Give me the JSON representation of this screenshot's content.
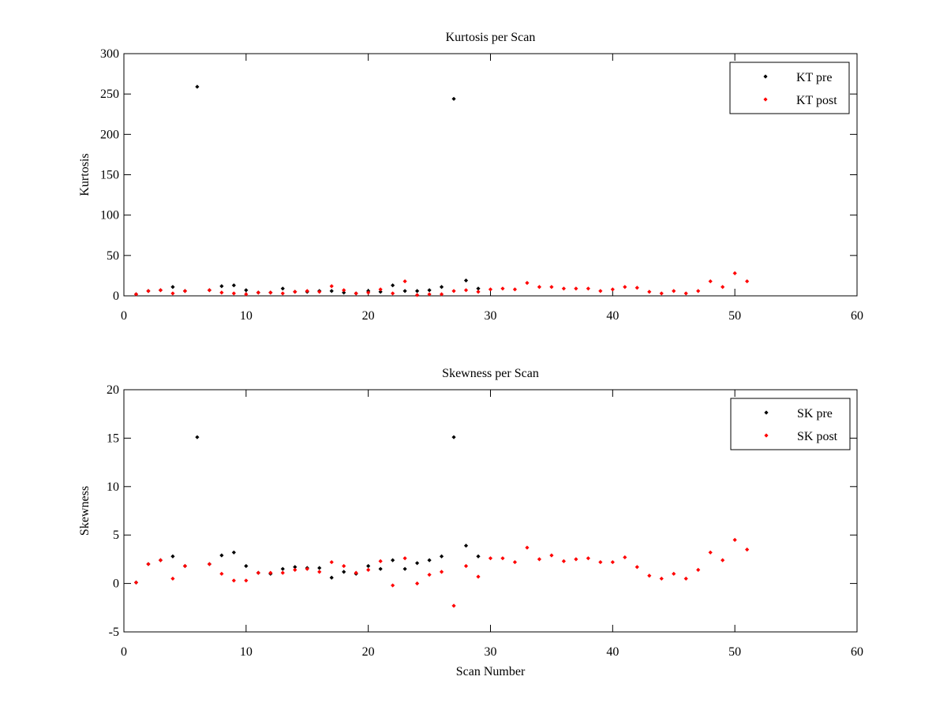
{
  "chart_data": [
    {
      "type": "scatter",
      "title": "Kurtosis per Scan",
      "xlabel": "",
      "ylabel": "Kurtosis",
      "xlim": [
        0,
        60
      ],
      "ylim": [
        0,
        300
      ],
      "xticks": [
        0,
        10,
        20,
        30,
        40,
        50,
        60
      ],
      "yticks": [
        0,
        50,
        100,
        150,
        200,
        250,
        300
      ],
      "legend_position": "top-right",
      "grid": false,
      "series": [
        {
          "name": "KT pre",
          "color": "#000000",
          "points": [
            [
              1,
              2
            ],
            [
              2,
              6
            ],
            [
              3,
              7
            ],
            [
              4,
              11
            ],
            [
              5,
              6
            ],
            [
              6,
              259
            ],
            [
              7,
              7
            ],
            [
              8,
              12
            ],
            [
              9,
              13
            ],
            [
              10,
              7
            ],
            [
              11,
              4
            ],
            [
              12,
              4
            ],
            [
              13,
              9
            ],
            [
              14,
              5
            ],
            [
              15,
              5
            ],
            [
              16,
              6
            ],
            [
              17,
              6
            ],
            [
              18,
              4
            ],
            [
              19,
              3
            ],
            [
              20,
              6
            ],
            [
              21,
              5
            ],
            [
              22,
              13
            ],
            [
              23,
              6
            ],
            [
              24,
              6
            ],
            [
              25,
              7
            ],
            [
              26,
              11
            ],
            [
              27,
              244
            ],
            [
              28,
              19
            ],
            [
              29,
              9
            ]
          ]
        },
        {
          "name": "KT post",
          "color": "#ff0000",
          "points": [
            [
              1,
              2
            ],
            [
              2,
              6
            ],
            [
              3,
              7
            ],
            [
              4,
              3
            ],
            [
              5,
              6
            ],
            [
              7,
              7
            ],
            [
              8,
              4
            ],
            [
              9,
              3
            ],
            [
              10,
              2
            ],
            [
              11,
              4
            ],
            [
              12,
              4
            ],
            [
              13,
              3
            ],
            [
              14,
              5
            ],
            [
              15,
              6
            ],
            [
              16,
              5
            ],
            [
              17,
              12
            ],
            [
              18,
              7
            ],
            [
              19,
              3
            ],
            [
              20,
              4
            ],
            [
              21,
              8
            ],
            [
              22,
              3
            ],
            [
              23,
              18
            ],
            [
              24,
              1
            ],
            [
              25,
              2
            ],
            [
              26,
              2
            ],
            [
              27,
              6
            ],
            [
              28,
              7
            ],
            [
              29,
              5
            ],
            [
              30,
              8
            ],
            [
              31,
              9
            ],
            [
              32,
              8
            ],
            [
              33,
              16
            ],
            [
              34,
              11
            ],
            [
              35,
              11
            ],
            [
              36,
              9
            ],
            [
              37,
              9
            ],
            [
              38,
              9
            ],
            [
              39,
              6
            ],
            [
              40,
              8
            ],
            [
              41,
              11
            ],
            [
              42,
              10
            ],
            [
              43,
              5
            ],
            [
              44,
              3
            ],
            [
              45,
              6
            ],
            [
              46,
              3
            ],
            [
              47,
              6
            ],
            [
              48,
              18
            ],
            [
              49,
              11
            ],
            [
              50,
              28
            ],
            [
              51,
              18
            ]
          ]
        }
      ]
    },
    {
      "type": "scatter",
      "title": "Skewness per Scan",
      "xlabel": "Scan Number",
      "ylabel": "Skewness",
      "xlim": [
        0,
        60
      ],
      "ylim": [
        -5,
        20
      ],
      "xticks": [
        0,
        10,
        20,
        30,
        40,
        50,
        60
      ],
      "yticks": [
        -5,
        0,
        5,
        10,
        15,
        20
      ],
      "legend_position": "top-right",
      "grid": false,
      "series": [
        {
          "name": "SK pre",
          "color": "#000000",
          "points": [
            [
              1,
              0.1
            ],
            [
              2,
              2.0
            ],
            [
              3,
              2.4
            ],
            [
              4,
              2.8
            ],
            [
              5,
              1.8
            ],
            [
              6,
              15.1
            ],
            [
              7,
              2.0
            ],
            [
              8,
              2.9
            ],
            [
              9,
              3.2
            ],
            [
              10,
              1.8
            ],
            [
              11,
              1.1
            ],
            [
              12,
              1.0
            ],
            [
              13,
              1.5
            ],
            [
              14,
              1.7
            ],
            [
              15,
              1.6
            ],
            [
              16,
              1.6
            ],
            [
              17,
              0.6
            ],
            [
              18,
              1.2
            ],
            [
              19,
              1.0
            ],
            [
              20,
              1.8
            ],
            [
              21,
              1.5
            ],
            [
              22,
              2.4
            ],
            [
              23,
              1.5
            ],
            [
              24,
              2.1
            ],
            [
              25,
              2.4
            ],
            [
              26,
              2.8
            ],
            [
              27,
              15.1
            ],
            [
              28,
              3.9
            ],
            [
              29,
              2.8
            ]
          ]
        },
        {
          "name": "SK post",
          "color": "#ff0000",
          "points": [
            [
              1,
              0.1
            ],
            [
              2,
              2.0
            ],
            [
              3,
              2.4
            ],
            [
              4,
              0.5
            ],
            [
              5,
              1.8
            ],
            [
              7,
              2.0
            ],
            [
              8,
              1.0
            ],
            [
              9,
              0.3
            ],
            [
              10,
              0.3
            ],
            [
              11,
              1.1
            ],
            [
              12,
              1.1
            ],
            [
              13,
              1.1
            ],
            [
              14,
              1.4
            ],
            [
              15,
              1.5
            ],
            [
              16,
              1.2
            ],
            [
              17,
              2.2
            ],
            [
              18,
              1.8
            ],
            [
              19,
              1.1
            ],
            [
              20,
              1.4
            ],
            [
              21,
              2.3
            ],
            [
              22,
              -0.2
            ],
            [
              23,
              2.6
            ],
            [
              24,
              0.0
            ],
            [
              25,
              0.9
            ],
            [
              26,
              1.2
            ],
            [
              27,
              -2.3
            ],
            [
              28,
              1.8
            ],
            [
              29,
              0.7
            ],
            [
              30,
              2.6
            ],
            [
              31,
              2.6
            ],
            [
              32,
              2.2
            ],
            [
              33,
              3.7
            ],
            [
              34,
              2.5
            ],
            [
              35,
              2.9
            ],
            [
              36,
              2.3
            ],
            [
              37,
              2.5
            ],
            [
              38,
              2.6
            ],
            [
              39,
              2.2
            ],
            [
              40,
              2.2
            ],
            [
              41,
              2.7
            ],
            [
              42,
              1.7
            ],
            [
              43,
              0.8
            ],
            [
              44,
              0.5
            ],
            [
              45,
              1.0
            ],
            [
              46,
              0.5
            ],
            [
              47,
              1.4
            ],
            [
              48,
              3.2
            ],
            [
              49,
              2.4
            ],
            [
              50,
              4.5
            ],
            [
              51,
              3.5
            ]
          ]
        }
      ]
    }
  ]
}
